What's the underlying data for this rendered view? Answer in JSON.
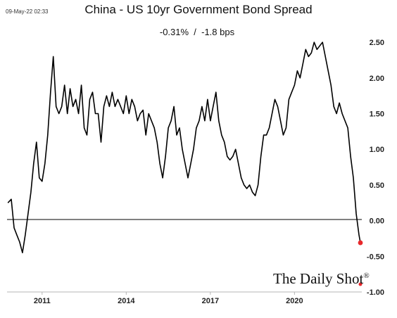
{
  "header": {
    "timestamp": "09-May-22 02:33",
    "title": "China - US 10yr Government Bond Spread",
    "subtitle": "-0.31%  /  -1.8 bps"
  },
  "brand": {
    "name": "The Daily Shot",
    "registered": "®"
  },
  "colors": {
    "line": "#000000",
    "marker": "#e8282b",
    "zero_line": "#000000",
    "axis": "#999999"
  },
  "chart_data": {
    "type": "line",
    "title": "China - US 10yr Government Bond Spread",
    "xlabel": "",
    "ylabel": "",
    "x_ticks": [
      "2011",
      "2014",
      "2017",
      "2020"
    ],
    "x_range": [
      2009.75,
      2022.4
    ],
    "ylim": [
      -1.0,
      2.6
    ],
    "y_ticks": [
      "2.50",
      "2.00",
      "1.50",
      "1.00",
      "0.50",
      "0.00",
      "-0.50",
      "-1.00"
    ],
    "y_axis_side": "right",
    "grid": false,
    "zero_line": true,
    "last_value": -0.31,
    "series": [
      {
        "x": [
          2009.78,
          2009.9,
          2010.0,
          2010.1,
          2010.2,
          2010.3,
          2010.4,
          2010.5,
          2010.6,
          2010.7,
          2010.8,
          2010.9,
          2011.0,
          2011.1,
          2011.2,
          2011.3,
          2011.4,
          2011.5,
          2011.6,
          2011.7,
          2011.8,
          2011.9,
          2012.0,
          2012.1,
          2012.2,
          2012.3,
          2012.4,
          2012.5,
          2012.6,
          2012.7,
          2012.8,
          2012.9,
          2013.0,
          2013.1,
          2013.2,
          2013.3,
          2013.4,
          2013.5,
          2013.6,
          2013.7,
          2013.8,
          2013.9,
          2014.0,
          2014.1,
          2014.2,
          2014.3,
          2014.4,
          2014.5,
          2014.6,
          2014.7,
          2014.8,
          2014.9,
          2015.0,
          2015.1,
          2015.2,
          2015.3,
          2015.4,
          2015.5,
          2015.6,
          2015.7,
          2015.8,
          2015.9,
          2016.0,
          2016.1,
          2016.2,
          2016.3,
          2016.4,
          2016.5,
          2016.6,
          2016.7,
          2016.8,
          2016.9,
          2017.0,
          2017.1,
          2017.2,
          2017.3,
          2017.4,
          2017.5,
          2017.6,
          2017.7,
          2017.8,
          2017.9,
          2018.0,
          2018.1,
          2018.2,
          2018.3,
          2018.4,
          2018.5,
          2018.6,
          2018.7,
          2018.8,
          2018.9,
          2019.0,
          2019.1,
          2019.2,
          2019.3,
          2019.4,
          2019.5,
          2019.6,
          2019.7,
          2019.8,
          2019.9,
          2020.0,
          2020.1,
          2020.2,
          2020.3,
          2020.4,
          2020.5,
          2020.6,
          2020.7,
          2020.8,
          2020.9,
          2021.0,
          2021.1,
          2021.2,
          2021.3,
          2021.4,
          2021.5,
          2021.6,
          2021.7,
          2021.8,
          2021.9,
          2022.0,
          2022.1,
          2022.2,
          2022.3,
          2022.35
        ],
        "values": [
          0.25,
          0.3,
          -0.1,
          -0.2,
          -0.3,
          -0.45,
          -0.2,
          0.1,
          0.4,
          0.8,
          1.1,
          0.6,
          0.55,
          0.8,
          1.2,
          1.8,
          2.3,
          1.6,
          1.5,
          1.6,
          1.9,
          1.5,
          1.85,
          1.6,
          1.7,
          1.5,
          1.9,
          1.3,
          1.2,
          1.7,
          1.8,
          1.5,
          1.5,
          1.1,
          1.6,
          1.75,
          1.6,
          1.8,
          1.6,
          1.7,
          1.6,
          1.5,
          1.75,
          1.5,
          1.7,
          1.6,
          1.4,
          1.5,
          1.55,
          1.2,
          1.5,
          1.4,
          1.3,
          1.1,
          0.8,
          0.6,
          0.9,
          1.3,
          1.4,
          1.6,
          1.2,
          1.3,
          1.0,
          0.8,
          0.6,
          0.8,
          1.0,
          1.3,
          1.4,
          1.6,
          1.4,
          1.7,
          1.4,
          1.6,
          1.8,
          1.4,
          1.2,
          1.1,
          0.9,
          0.85,
          0.9,
          1.0,
          0.8,
          0.6,
          0.5,
          0.45,
          0.5,
          0.4,
          0.35,
          0.5,
          0.9,
          1.2,
          1.2,
          1.3,
          1.5,
          1.7,
          1.6,
          1.4,
          1.2,
          1.3,
          1.7,
          1.8,
          1.9,
          2.1,
          2.0,
          2.2,
          2.4,
          2.3,
          2.35,
          2.5,
          2.4,
          2.45,
          2.5,
          2.3,
          2.1,
          1.9,
          1.6,
          1.5,
          1.65,
          1.5,
          1.4,
          1.3,
          0.9,
          0.6,
          0.1,
          -0.2,
          -0.31
        ]
      }
    ]
  }
}
